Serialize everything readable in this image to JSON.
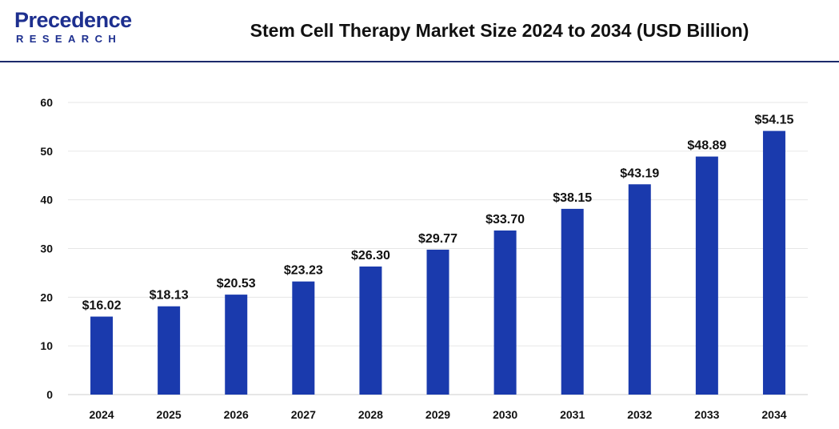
{
  "brand": {
    "name": "Precedence",
    "sub": "RESEARCH"
  },
  "colors": {
    "bar": "#1a3aad",
    "brand": "#1d2f8f",
    "grid": "#e6e6e6"
  },
  "chart_data": {
    "type": "bar",
    "title": "Stem Cell Therapy Market Size 2024 to 2034 (USD Billion)",
    "xlabel": "",
    "ylabel": "",
    "categories": [
      "2024",
      "2025",
      "2026",
      "2027",
      "2028",
      "2029",
      "2030",
      "2031",
      "2032",
      "2033",
      "2034"
    ],
    "values": [
      16.02,
      18.13,
      20.53,
      23.23,
      26.3,
      29.77,
      33.7,
      38.15,
      43.19,
      48.89,
      54.15
    ],
    "value_labels": [
      "$16.02",
      "$18.13",
      "$20.53",
      "$23.23",
      "$26.30",
      "$29.77",
      "$33.70",
      "$38.15",
      "$43.19",
      "$48.89",
      "$54.15"
    ],
    "ylim": [
      0,
      60
    ],
    "yticks": [
      0,
      10,
      20,
      30,
      40,
      50,
      60
    ],
    "ytick_labels": [
      "0",
      "10",
      "20",
      "30",
      "40",
      "50",
      "60"
    ],
    "grid": true,
    "legend": "none"
  }
}
